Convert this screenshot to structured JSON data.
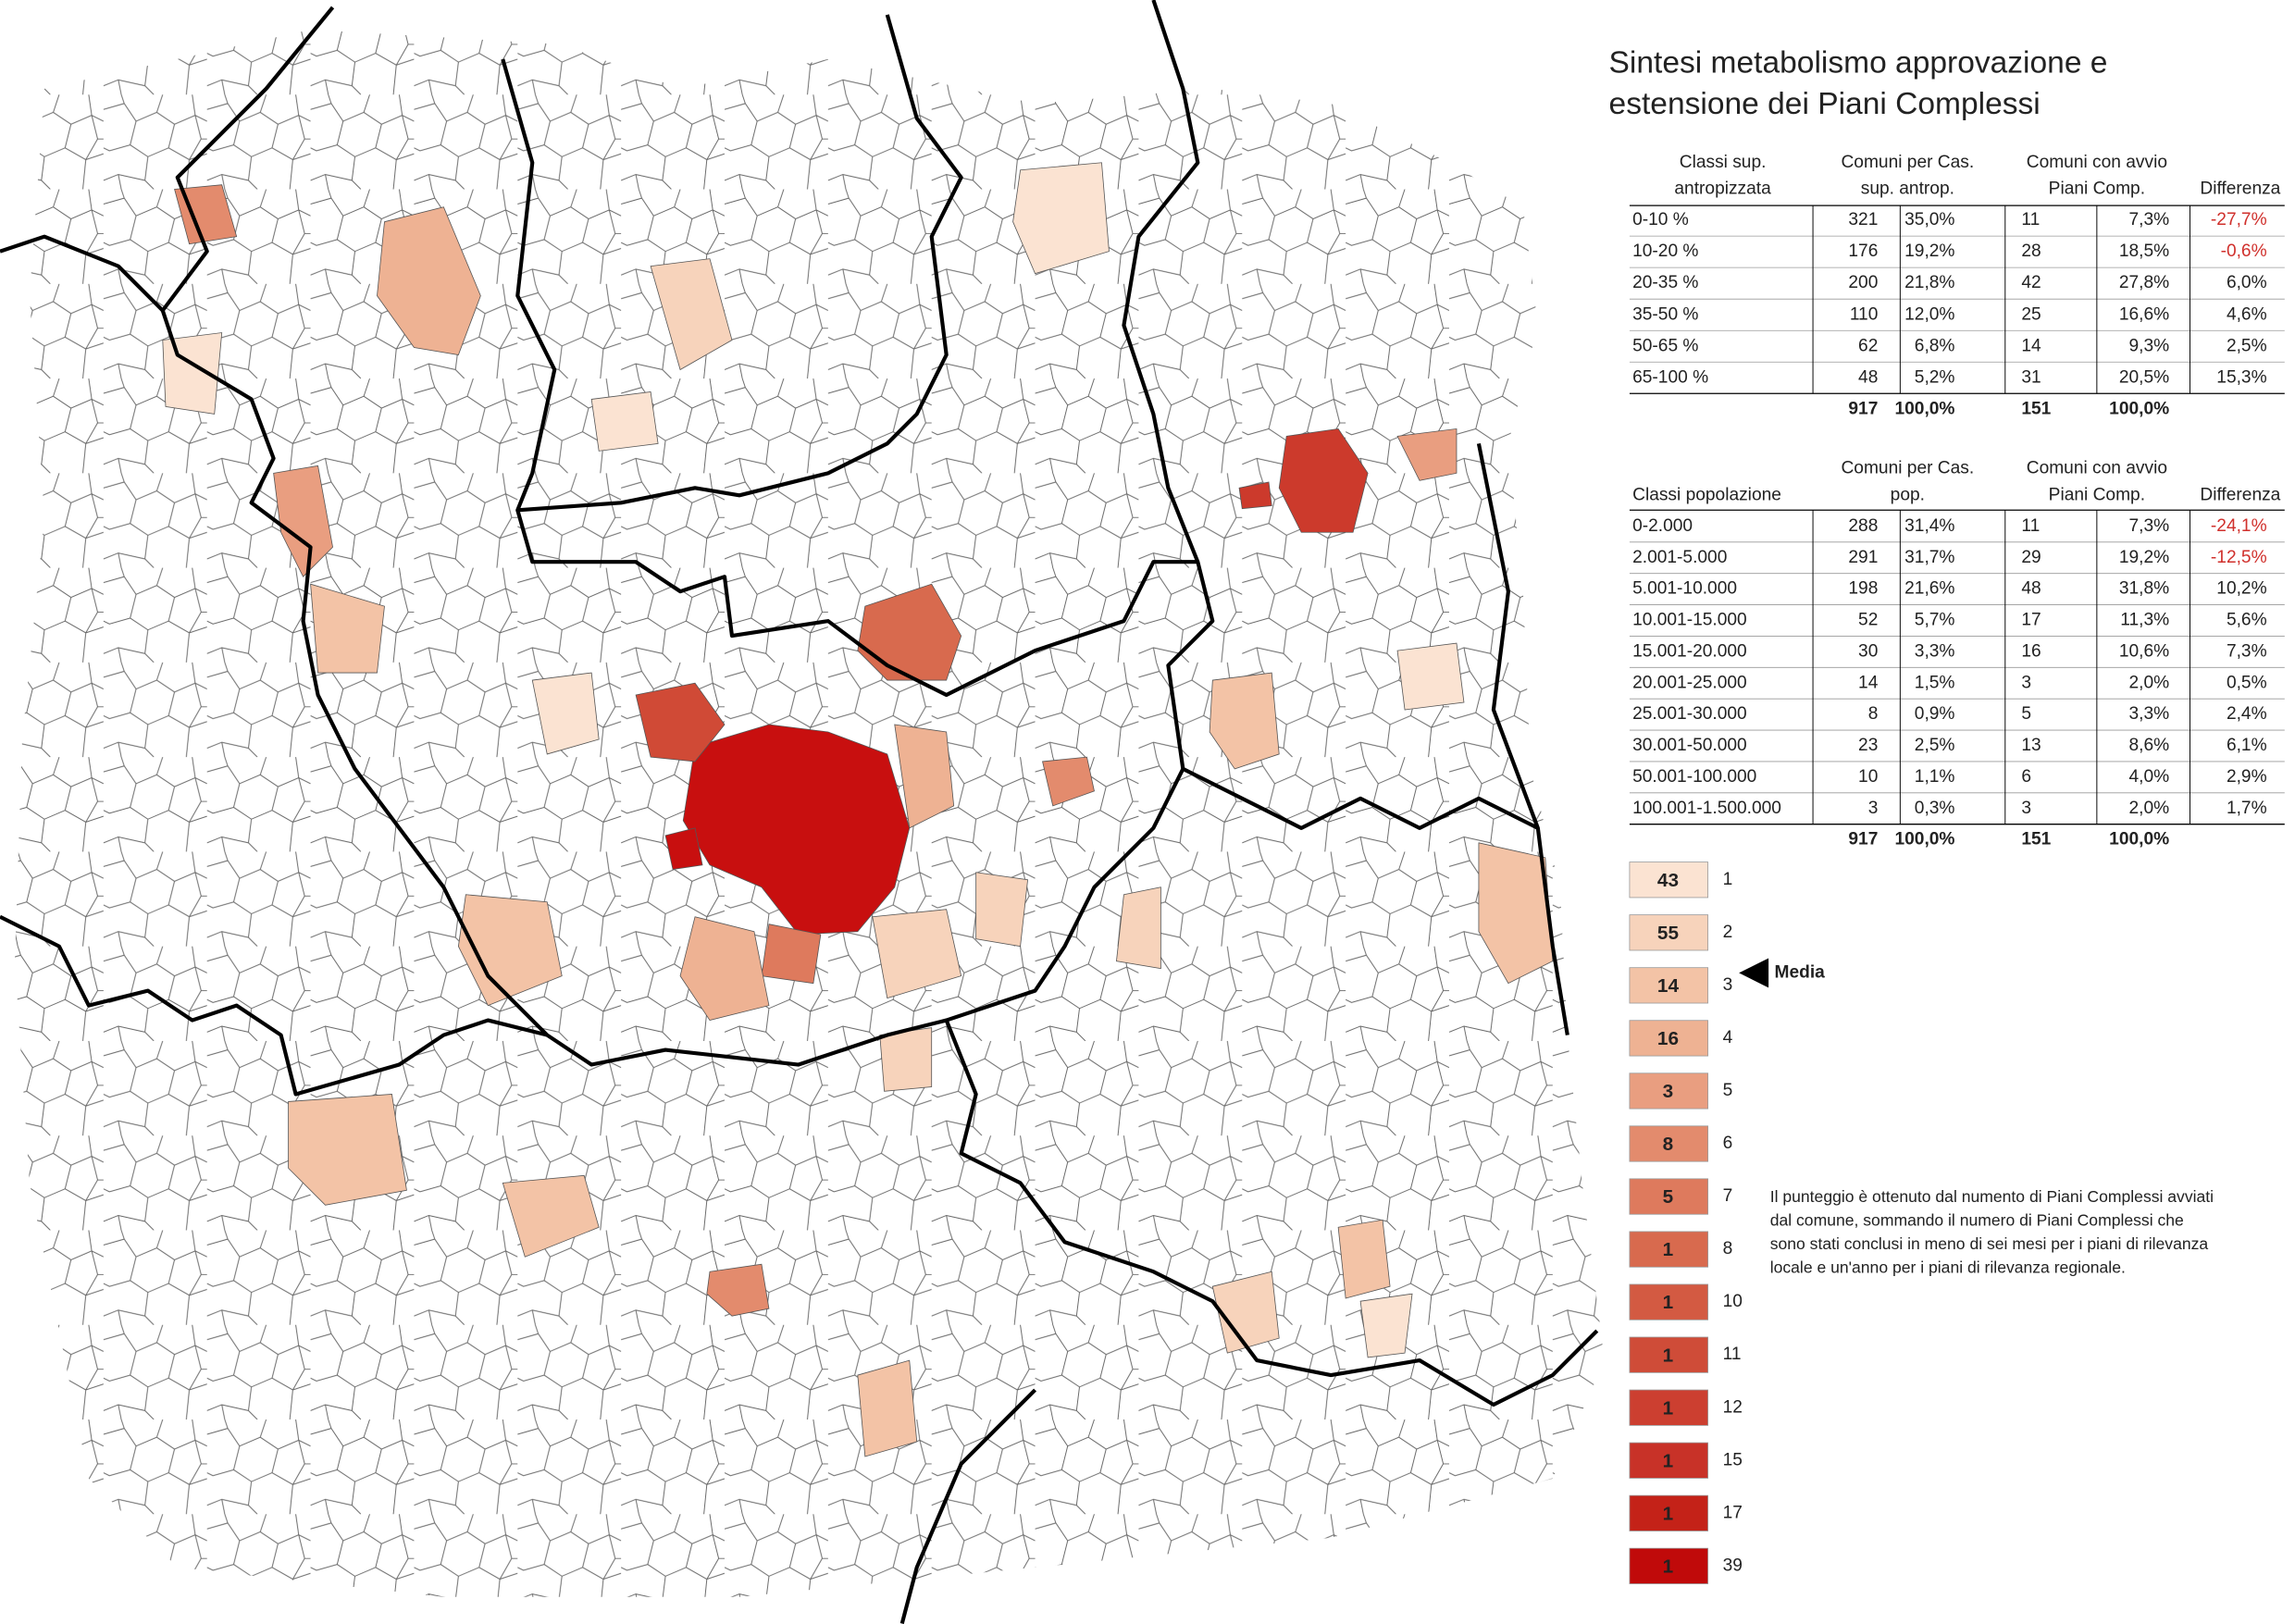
{
  "title": [
    "Sintesi metabolismo approvazione e",
    "estensione dei Piani Complessi"
  ],
  "table_surface": {
    "headers": [
      [
        "Classi sup.",
        "antropizzata"
      ],
      [
        "Comuni per Cas.",
        "sup. antrop."
      ],
      [
        "Comuni con avvio",
        "Piani Comp."
      ],
      [
        "Differenza"
      ]
    ],
    "rows": [
      [
        "0-10 %",
        321,
        "35,0%",
        11,
        "7,3%",
        "-27,7%"
      ],
      [
        "10-20 %",
        176,
        "19,2%",
        28,
        "18,5%",
        "-0,6%"
      ],
      [
        "20-35 %",
        200,
        "21,8%",
        42,
        "27,8%",
        "6,0%"
      ],
      [
        "35-50 %",
        110,
        "12,0%",
        25,
        "16,6%",
        "4,6%"
      ],
      [
        "50-65 %",
        62,
        "6,8%",
        14,
        "9,3%",
        "2,5%"
      ],
      [
        "65-100 %",
        48,
        "5,2%",
        31,
        "20,5%",
        "15,3%"
      ]
    ],
    "totals": [
      917,
      "100,0%",
      151,
      "100,0%"
    ]
  },
  "table_population": {
    "headers": [
      [
        "Classi popolazione"
      ],
      [
        "Comuni per Cas.",
        "pop."
      ],
      [
        "Comuni con avvio",
        "Piani Comp."
      ],
      [
        "Differenza"
      ]
    ],
    "rows": [
      [
        "0-2.000",
        288,
        "31,4%",
        11,
        "7,3%",
        "-24,1%"
      ],
      [
        "2.001-5.000",
        291,
        "31,7%",
        29,
        "19,2%",
        "-12,5%"
      ],
      [
        "5.001-10.000",
        198,
        "21,6%",
        48,
        "31,8%",
        "10,2%"
      ],
      [
        "10.001-15.000",
        52,
        "5,7%",
        17,
        "11,3%",
        "5,6%"
      ],
      [
        "15.001-20.000",
        30,
        "3,3%",
        16,
        "10,6%",
        "7,3%"
      ],
      [
        "20.001-25.000",
        14,
        "1,5%",
        3,
        "2,0%",
        "0,5%"
      ],
      [
        "25.001-30.000",
        8,
        "0,9%",
        5,
        "3,3%",
        "2,4%"
      ],
      [
        "30.001-50.000",
        23,
        "2,5%",
        13,
        "8,6%",
        "6,1%"
      ],
      [
        "50.001-100.000",
        10,
        "1,1%",
        6,
        "4,0%",
        "2,9%"
      ],
      [
        "100.001-1.500.000",
        3,
        "0,3%",
        3,
        "2,0%",
        "1,7%"
      ]
    ],
    "totals": [
      917,
      "100,0%",
      151,
      "100,0%"
    ]
  },
  "legend": {
    "items": [
      {
        "count": 43,
        "score": 1,
        "color": "#fbe3d2"
      },
      {
        "count": 55,
        "score": 2,
        "color": "#f7d3bb"
      },
      {
        "count": 14,
        "score": 3,
        "color": "#f3c3a6"
      },
      {
        "count": 16,
        "score": 4,
        "color": "#eeb293"
      },
      {
        "count": 3,
        "score": 5,
        "color": "#e99e80"
      },
      {
        "count": 8,
        "score": 6,
        "color": "#e38b6d"
      },
      {
        "count": 5,
        "score": 7,
        "color": "#de7a5d"
      },
      {
        "count": 1,
        "score": 8,
        "color": "#d86a4e"
      },
      {
        "count": 1,
        "score": 10,
        "color": "#d35a42"
      },
      {
        "count": 1,
        "score": 11,
        "color": "#cf4c38"
      },
      {
        "count": 1,
        "score": 12,
        "color": "#cc3f30"
      },
      {
        "count": 1,
        "score": 15,
        "color": "#c83228"
      },
      {
        "count": 1,
        "score": 17,
        "color": "#c42218"
      },
      {
        "count": 1,
        "score": 39,
        "color": "#c00a0a"
      }
    ],
    "average_label": "Media"
  },
  "note": [
    "Il punteggio è ottenuto dal numento di Piani Complessi avviati",
    "dal comune, sommando il numero di Piani Complessi che",
    "sono stati conclusi in meno di sei mesi per i piani di rilevanza",
    "locale e un'anno per i piani di rilevanza regionale."
  ]
}
